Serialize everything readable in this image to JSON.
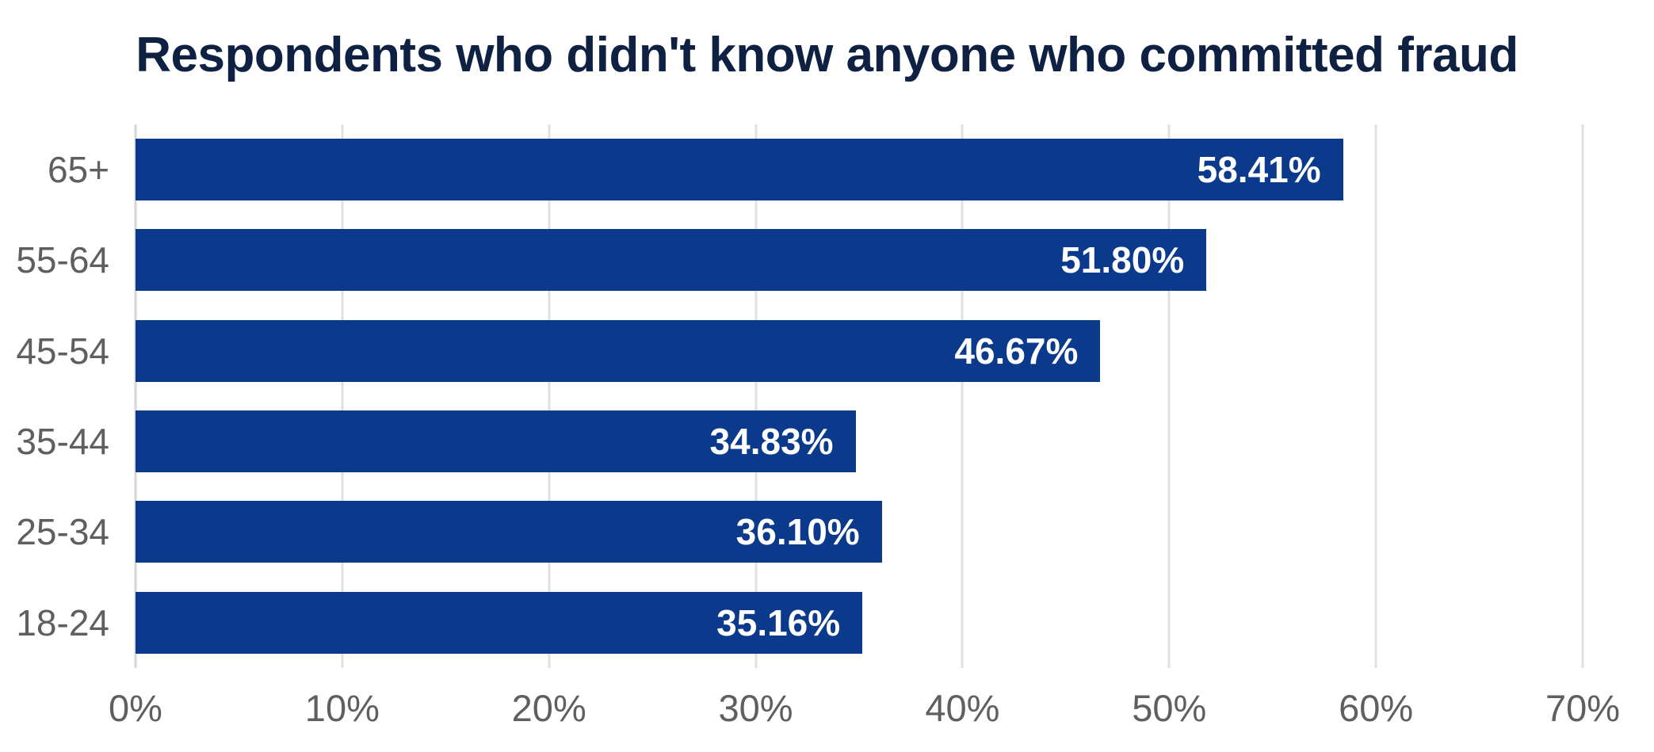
{
  "chart_data": {
    "type": "bar",
    "orientation": "horizontal",
    "title": "Respondents who didn't know anyone who committed fraud",
    "categories": [
      "65+",
      "55-64",
      "45-54",
      "35-44",
      "25-34",
      "18-24"
    ],
    "values": [
      58.41,
      51.8,
      46.67,
      34.83,
      36.1,
      35.16
    ],
    "value_labels": [
      "58.41%",
      "51.80%",
      "46.67%",
      "34.83%",
      "36.10%",
      "35.16%"
    ],
    "xlabel": "",
    "ylabel": "",
    "xlim": [
      0,
      70
    ],
    "xticks": [
      0,
      10,
      20,
      30,
      40,
      50,
      60,
      70
    ],
    "xtick_labels": [
      "0%",
      "10%",
      "20%",
      "30%",
      "40%",
      "50%",
      "60%",
      "70%"
    ],
    "grid": "vertical-gridlines-on",
    "legend": "none",
    "colors": {
      "bar": "#0b3a8d",
      "title": "#0f2142",
      "axis_labels": "#5f5f5f",
      "value_labels": "#ffffff",
      "gridline": "#e0e0e0",
      "background": "#ffffff"
    }
  }
}
